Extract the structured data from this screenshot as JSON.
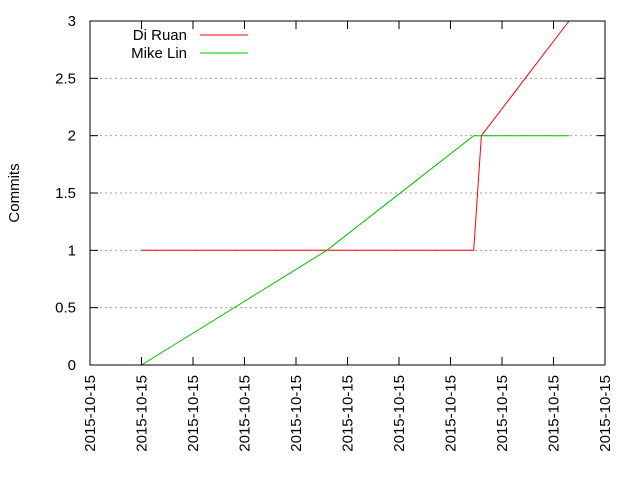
{
  "chart_data": {
    "type": "line",
    "ylabel": "Commits",
    "xlabel": "",
    "ylim": [
      0,
      3
    ],
    "yticks": [
      "0",
      "0.5",
      "1",
      "1.5",
      "2",
      "2.5",
      "3"
    ],
    "ytick_values": [
      0,
      0.5,
      1,
      1.5,
      2,
      2.5,
      3
    ],
    "xlim": [
      0,
      10
    ],
    "xticks": [
      "2015-10-15",
      "2015-10-15",
      "2015-10-15",
      "2015-10-15",
      "2015-10-15",
      "2015-10-15",
      "2015-10-15",
      "2015-10-15",
      "2015-10-15",
      "2015-10-15",
      "2015-10-15"
    ],
    "xtick_values": [
      0,
      1,
      2,
      3,
      4,
      5,
      6,
      7,
      8,
      9,
      10
    ],
    "grid": "y dotted",
    "legend": {
      "position": "top-left"
    },
    "series": [
      {
        "name": "Di Ruan",
        "color": "#ff0000",
        "points": [
          [
            1.0,
            1
          ],
          [
            7.45,
            1
          ],
          [
            7.6,
            2
          ],
          [
            9.3,
            3
          ]
        ]
      },
      {
        "name": "Mike Lin",
        "color": "#00c000",
        "points": [
          [
            1.0,
            0
          ],
          [
            4.6,
            1
          ],
          [
            7.45,
            2
          ],
          [
            9.3,
            2
          ]
        ]
      }
    ]
  }
}
